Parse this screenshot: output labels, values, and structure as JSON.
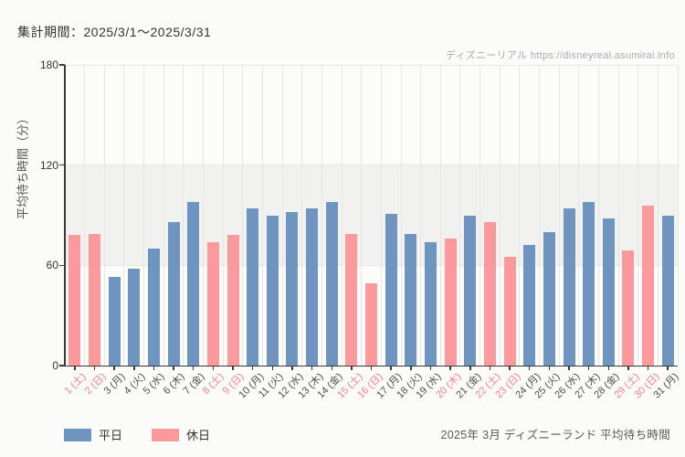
{
  "header": {
    "period_label": "集計期間：2025/3/1～2025/3/31"
  },
  "watermark": {
    "text": "ディズニーリアル https://disneyreal.asumirai.info"
  },
  "footer": {
    "caption": "2025年 3月 ディズニーランド 平均待ち時間"
  },
  "chart_data": {
    "type": "bar",
    "title": "2025年 3月 ディズニーランド 平均待ち時間",
    "xlabel": "",
    "ylabel": "平均待ち時間（分）",
    "ylim": [
      0,
      180
    ],
    "yticks": [
      0,
      60,
      120,
      180
    ],
    "grid": true,
    "highlight_band": [
      60,
      120
    ],
    "legend_position": "bottom-left",
    "legend": [
      {
        "label": "平日",
        "color": "#6d95bf",
        "type": "weekday"
      },
      {
        "label": "休日",
        "color": "#fb999d",
        "type": "holiday"
      }
    ],
    "label_colors": {
      "weekday": "#4d4d4d",
      "holiday": "#f0838a"
    },
    "bars": [
      {
        "label": "1 (土)",
        "value": 78,
        "type": "holiday"
      },
      {
        "label": "2 (日)",
        "value": 79,
        "type": "holiday"
      },
      {
        "label": "3 (月)",
        "value": 53,
        "type": "weekday"
      },
      {
        "label": "4 (火)",
        "value": 58,
        "type": "weekday"
      },
      {
        "label": "5 (水)",
        "value": 70,
        "type": "weekday"
      },
      {
        "label": "6 (木)",
        "value": 86,
        "type": "weekday"
      },
      {
        "label": "7 (金)",
        "value": 98,
        "type": "weekday"
      },
      {
        "label": "8 (土)",
        "value": 74,
        "type": "holiday"
      },
      {
        "label": "9 (日)",
        "value": 78,
        "type": "holiday"
      },
      {
        "label": "10 (月)",
        "value": 94,
        "type": "weekday"
      },
      {
        "label": "11 (火)",
        "value": 90,
        "type": "weekday"
      },
      {
        "label": "12 (水)",
        "value": 92,
        "type": "weekday"
      },
      {
        "label": "13 (木)",
        "value": 94,
        "type": "weekday"
      },
      {
        "label": "14 (金)",
        "value": 98,
        "type": "weekday"
      },
      {
        "label": "15 (土)",
        "value": 79,
        "type": "holiday"
      },
      {
        "label": "16 (日)",
        "value": 49,
        "type": "holiday"
      },
      {
        "label": "17 (月)",
        "value": 91,
        "type": "weekday"
      },
      {
        "label": "18 (火)",
        "value": 79,
        "type": "weekday"
      },
      {
        "label": "19 (水)",
        "value": 74,
        "type": "weekday"
      },
      {
        "label": "20 (木)",
        "value": 76,
        "type": "holiday"
      },
      {
        "label": "21 (金)",
        "value": 90,
        "type": "weekday"
      },
      {
        "label": "22 (土)",
        "value": 86,
        "type": "holiday"
      },
      {
        "label": "23 (日)",
        "value": 65,
        "type": "holiday"
      },
      {
        "label": "24 (月)",
        "value": 72,
        "type": "weekday"
      },
      {
        "label": "25 (火)",
        "value": 80,
        "type": "weekday"
      },
      {
        "label": "26 (水)",
        "value": 94,
        "type": "weekday"
      },
      {
        "label": "27 (木)",
        "value": 98,
        "type": "weekday"
      },
      {
        "label": "28 (金)",
        "value": 88,
        "type": "weekday"
      },
      {
        "label": "29 (土)",
        "value": 69,
        "type": "holiday"
      },
      {
        "label": "30 (日)",
        "value": 96,
        "type": "holiday"
      },
      {
        "label": "31 (月)",
        "value": 90,
        "type": "weekday"
      }
    ]
  }
}
